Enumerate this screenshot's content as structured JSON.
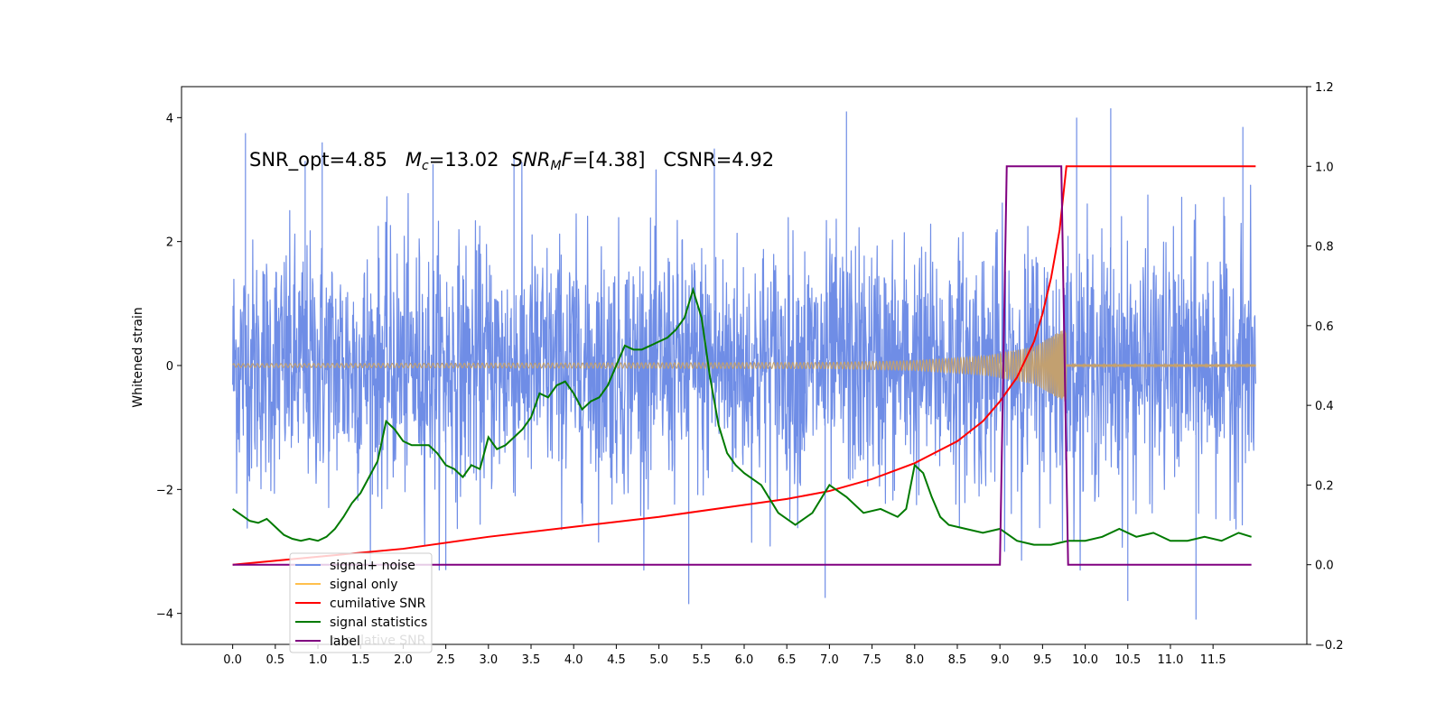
{
  "chart_data": {
    "type": "line",
    "title": "",
    "annotation": {
      "prefix": "SNR_opt=4.85   ",
      "mc_symbol": "M",
      "mc_sub": "c",
      "mc_value": "=13.02  ",
      "mf_symbol": "SNR",
      "mf_sub": "M",
      "mf_italic": "F",
      "mf_value": "=[4.38]   ",
      "suffix": "CSNR=4.92"
    },
    "left_axis": {
      "label": "Whitened strain",
      "ylim": [
        -4.5,
        4.5
      ],
      "ticks": [
        -4,
        -2,
        0,
        2,
        4
      ],
      "tick_labels": [
        "−4",
        "−2",
        "0",
        "2",
        "4"
      ]
    },
    "right_axis": {
      "label": "",
      "ylim": [
        -0.2,
        1.2
      ],
      "ticks": [
        -0.2,
        0.0,
        0.2,
        0.4,
        0.6,
        0.8,
        1.0,
        1.2
      ],
      "tick_labels": [
        "−0.2",
        "0.0",
        "0.2",
        "0.4",
        "0.6",
        "0.8",
        "1.0",
        "1.2"
      ]
    },
    "x_axis": {
      "label": "",
      "xlim": [
        -0.6,
        12.6
      ],
      "ticks": [
        0,
        0.5,
        1,
        1.5,
        2,
        2.5,
        3,
        3.5,
        4,
        4.5,
        5,
        5.5,
        6,
        6.5,
        7,
        7.5,
        8,
        8.5,
        9,
        9.5,
        10,
        10.5,
        11,
        11.5
      ],
      "tick_labels": [
        "0.0",
        "0.5",
        "1.0",
        "1.5",
        "2.0",
        "2.5",
        "3.0",
        "3.5",
        "4.0",
        "4.5",
        "5.0",
        "5.5",
        "6.0",
        "6.5",
        "7.0",
        "7.5",
        "8.0",
        "8.5",
        "9.0",
        "9.5",
        "10.0",
        "10.5",
        "11.0",
        "11.5"
      ]
    },
    "legend": {
      "placement": "lower-left",
      "entries": [
        {
          "label": "signal+ noise",
          "color": "#6f8de6"
        },
        {
          "label": "signal only",
          "color": "#ffc04d"
        },
        {
          "label": "cumilative SNR",
          "color": "#ff0000"
        },
        {
          "label": "signal statistics",
          "color": "#007a00"
        },
        {
          "label": "label",
          "color": "#800080"
        }
      ],
      "hidden_text": "cumilative SNR"
    },
    "series": [
      {
        "name": "signal+ noise",
        "axis": "left",
        "color": "#6f8de6",
        "x_range": [
          0,
          12
        ],
        "envelope_typical": 2.3,
        "extreme_spikes": [
          {
            "x": 0.15,
            "y": 3.75
          },
          {
            "x": 0.85,
            "y": 3.3
          },
          {
            "x": 1.05,
            "y": 3.6
          },
          {
            "x": 2.35,
            "y": 3.25
          },
          {
            "x": 2.5,
            "y": -3.3
          },
          {
            "x": 3.3,
            "y": 3.4
          },
          {
            "x": 5.35,
            "y": -3.85
          },
          {
            "x": 5.65,
            "y": 3.5
          },
          {
            "x": 6.95,
            "y": -3.75
          },
          {
            "x": 7.2,
            "y": 4.1
          },
          {
            "x": 9.9,
            "y": 4.0
          },
          {
            "x": 10.3,
            "y": 4.15
          },
          {
            "x": 10.5,
            "y": -3.8
          },
          {
            "x": 11.3,
            "y": -4.1
          },
          {
            "x": 11.85,
            "y": 3.85
          }
        ]
      },
      {
        "name": "signal only",
        "axis": "left",
        "color": "#c2a070",
        "x_range": [
          0,
          12
        ],
        "chirp_end": 9.78,
        "amplitude_at": [
          [
            0,
            0.03
          ],
          [
            7.0,
            0.05
          ],
          [
            8.0,
            0.08
          ],
          [
            8.8,
            0.15
          ],
          [
            9.4,
            0.3
          ],
          [
            9.7,
            0.55
          ],
          [
            9.78,
            0.6
          ]
        ]
      },
      {
        "name": "cumilative SNR",
        "axis": "right",
        "color": "#ff0000",
        "x": [
          0.0,
          1.0,
          2.0,
          3.0,
          4.0,
          5.0,
          6.0,
          6.5,
          7.0,
          7.5,
          8.0,
          8.5,
          8.8,
          9.0,
          9.2,
          9.4,
          9.5,
          9.6,
          9.7,
          9.75,
          9.78,
          9.8,
          12.0
        ],
        "y": [
          0.0,
          0.02,
          0.04,
          0.07,
          0.095,
          0.12,
          0.15,
          0.165,
          0.185,
          0.215,
          0.255,
          0.31,
          0.36,
          0.41,
          0.47,
          0.56,
          0.63,
          0.72,
          0.84,
          0.94,
          1.0,
          1.0,
          1.0
        ]
      },
      {
        "name": "signal statistics",
        "axis": "right",
        "color": "#007a00",
        "x": [
          0.0,
          0.1,
          0.2,
          0.3,
          0.4,
          0.5,
          0.6,
          0.7,
          0.8,
          0.9,
          1.0,
          1.1,
          1.2,
          1.3,
          1.4,
          1.5,
          1.6,
          1.7,
          1.8,
          1.9,
          2.0,
          2.1,
          2.2,
          2.3,
          2.4,
          2.5,
          2.6,
          2.7,
          2.8,
          2.9,
          3.0,
          3.1,
          3.2,
          3.3,
          3.4,
          3.5,
          3.6,
          3.7,
          3.8,
          3.9,
          4.0,
          4.1,
          4.2,
          4.3,
          4.4,
          4.5,
          4.6,
          4.7,
          4.8,
          4.9,
          5.0,
          5.1,
          5.2,
          5.3,
          5.4,
          5.5,
          5.6,
          5.7,
          5.8,
          5.9,
          6.0,
          6.2,
          6.4,
          6.6,
          6.8,
          7.0,
          7.2,
          7.4,
          7.6,
          7.8,
          7.9,
          8.0,
          8.1,
          8.2,
          8.3,
          8.4,
          8.6,
          8.8,
          9.0,
          9.2,
          9.4,
          9.6,
          9.8,
          10.0,
          10.2,
          10.4,
          10.6,
          10.8,
          11.0,
          11.2,
          11.4,
          11.6,
          11.8,
          11.95
        ],
        "y": [
          0.14,
          0.125,
          0.11,
          0.105,
          0.115,
          0.095,
          0.075,
          0.065,
          0.06,
          0.065,
          0.06,
          0.07,
          0.09,
          0.12,
          0.155,
          0.18,
          0.22,
          0.26,
          0.36,
          0.34,
          0.31,
          0.3,
          0.3,
          0.3,
          0.28,
          0.25,
          0.24,
          0.22,
          0.25,
          0.24,
          0.32,
          0.29,
          0.3,
          0.32,
          0.34,
          0.37,
          0.43,
          0.42,
          0.45,
          0.46,
          0.43,
          0.39,
          0.41,
          0.42,
          0.45,
          0.5,
          0.55,
          0.54,
          0.54,
          0.55,
          0.56,
          0.57,
          0.59,
          0.62,
          0.69,
          0.62,
          0.47,
          0.35,
          0.28,
          0.25,
          0.23,
          0.2,
          0.13,
          0.1,
          0.13,
          0.2,
          0.17,
          0.13,
          0.14,
          0.12,
          0.14,
          0.25,
          0.23,
          0.17,
          0.12,
          0.1,
          0.09,
          0.08,
          0.09,
          0.06,
          0.05,
          0.05,
          0.06,
          0.06,
          0.07,
          0.09,
          0.07,
          0.08,
          0.06,
          0.06,
          0.07,
          0.06,
          0.08,
          0.07
        ]
      },
      {
        "name": "label",
        "axis": "right",
        "color": "#800080",
        "x": [
          0.0,
          9.0,
          9.08,
          9.72,
          9.8,
          11.95
        ],
        "y": [
          0.0,
          0.0,
          1.0,
          1.0,
          0.0,
          0.0
        ]
      }
    ]
  }
}
